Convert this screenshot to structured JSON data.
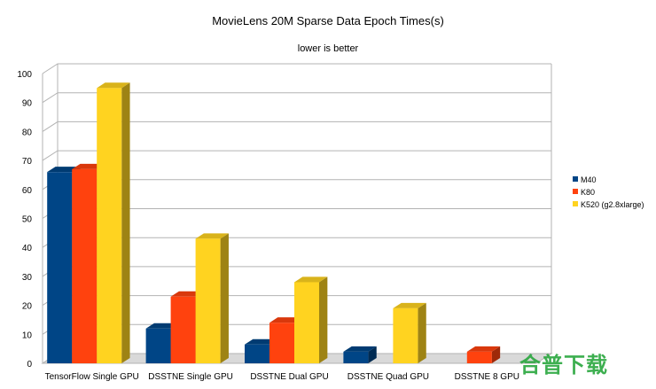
{
  "chart_data": {
    "type": "bar",
    "title": "MovieLens 20M Sparse Data Epoch Times(s)",
    "subtitle": "lower is better",
    "xlabel": "",
    "ylabel": "",
    "ylim": [
      0,
      100
    ],
    "yticks": [
      "0",
      "10",
      "20",
      "30",
      "40",
      "50",
      "60",
      "70",
      "80",
      "90",
      "100"
    ],
    "categories": [
      "TensorFlow Single GPU",
      "DSSTNE Single GPU",
      "DSSTNE Dual GPU",
      "DSSTNE Quad GPU",
      "DSSTNE 8 GPU"
    ],
    "series": [
      {
        "name": "M40",
        "color": "#004586",
        "values": [
          66,
          12,
          6.5,
          4,
          0
        ]
      },
      {
        "name": "K80",
        "color": "#ff420e",
        "values": [
          67,
          23,
          14,
          0,
          4
        ]
      },
      {
        "name": "K520 (g2.8xlarge)",
        "color": "#ffd320",
        "values": [
          95,
          43,
          28,
          19,
          0
        ]
      }
    ],
    "grid": true,
    "legend_position": "right"
  },
  "watermark": {
    "text": "合普下载",
    "color": "#29a73e"
  }
}
